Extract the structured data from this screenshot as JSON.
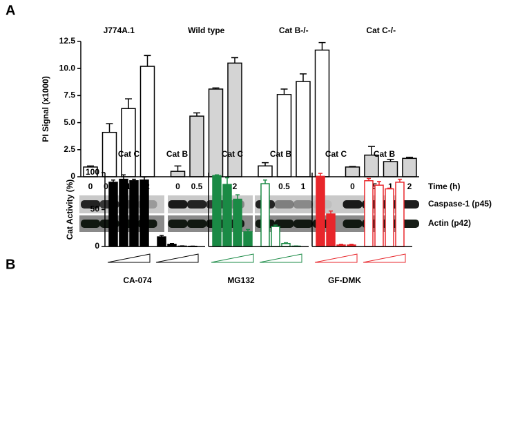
{
  "chart_data": [
    {
      "type": "bar",
      "panel": "A",
      "ylabel": "PI Signal (x1000)",
      "xlabel": "Time (h)",
      "categories": [
        "0",
        "0.5",
        "1",
        "2"
      ],
      "ylim": [
        0,
        12.5
      ],
      "yticks": [
        0,
        2.5,
        {
          "value": 5,
          "label": "5.0"
        },
        7.5,
        {
          "value": 10,
          "label": "10.0"
        },
        12.5
      ],
      "series": [
        {
          "name": "J774A.1",
          "color": "#ffffff",
          "values": [
            0.9,
            4.1,
            6.3,
            10.2
          ],
          "errors": [
            0.1,
            0.8,
            0.9,
            1.0
          ]
        },
        {
          "name": "Wild type",
          "color": "#d4d4d4",
          "values": [
            0.5,
            5.6,
            8.1,
            10.5
          ],
          "errors": [
            0.5,
            0.3,
            0.1,
            0.5
          ]
        },
        {
          "name": "Cat B-/-",
          "color": "#ffffff",
          "values": [
            1.0,
            7.6,
            8.8,
            11.7
          ],
          "errors": [
            0.3,
            0.5,
            0.7,
            0.7
          ]
        },
        {
          "name": "Cat C-/-",
          "color": "#d4d4d4",
          "values": [
            0.9,
            2.0,
            1.4,
            1.7
          ],
          "errors": [
            0.05,
            0.8,
            0.2,
            0.1
          ]
        }
      ],
      "blot_labels": [
        "Caspase-1 (p45)",
        "Actin (p42)"
      ]
    },
    {
      "type": "bar",
      "panel": "B",
      "title": "CA-074",
      "ylabel": "Cat Activity (%)",
      "ylim": [
        0,
        100
      ],
      "yticks": [
        0,
        50,
        100
      ],
      "series": [
        {
          "name": "Cat C",
          "color": "#000000",
          "filled": true,
          "values": [
            87,
            91,
            89,
            90
          ],
          "errors": [
            3,
            6,
            2,
            4
          ]
        },
        {
          "name": "Cat B",
          "color": "#000000",
          "filled": true,
          "values": [
            13,
            3,
            0.5,
            0.3
          ],
          "errors": [
            2,
            1,
            0.3,
            0.2
          ]
        }
      ]
    },
    {
      "type": "bar",
      "title": "MG132",
      "ylim": [
        0,
        100
      ],
      "series": [
        {
          "name": "Cat C",
          "color": "#1a8a45",
          "filled": true,
          "values": [
            96,
            84,
            64,
            20
          ],
          "errors": [
            1,
            9,
            6,
            3
          ]
        },
        {
          "name": "Cat B",
          "color": "#1a8a45",
          "filled": false,
          "values": [
            85,
            27,
            4,
            0.5
          ],
          "errors": [
            5,
            2,
            1,
            0.2
          ]
        }
      ]
    },
    {
      "type": "bar",
      "title": "GF-DMK",
      "ylim": [
        0,
        100
      ],
      "series": [
        {
          "name": "Cat C",
          "color": "#e8262b",
          "filled": true,
          "values": [
            95,
            44,
            2,
            2
          ],
          "errors": [
            4,
            4,
            1,
            1
          ]
        },
        {
          "name": "Cat B",
          "color": "#e8262b",
          "filled": false,
          "values": [
            89,
            83,
            78,
            87
          ],
          "errors": [
            3,
            5,
            1,
            4
          ]
        }
      ]
    }
  ]
}
